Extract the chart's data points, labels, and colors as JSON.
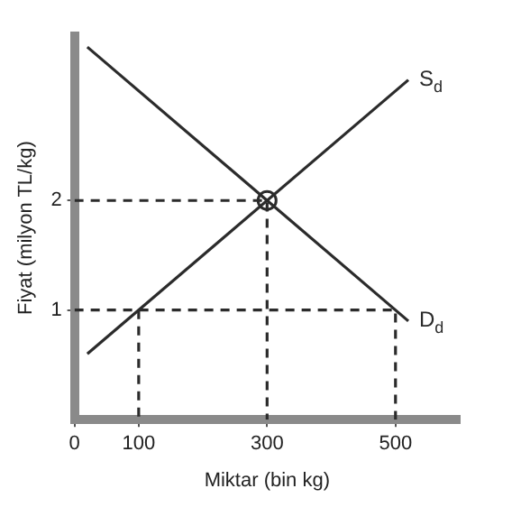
{
  "chart_data": {
    "type": "line",
    "xlabel": "Miktar (bin kg)",
    "ylabel": "Fiyat (milyon TL/kg)",
    "xlim": [
      0,
      600
    ],
    "ylim": [
      0,
      3.5
    ],
    "xticks": [
      0,
      100,
      300,
      500
    ],
    "yticks": [
      1,
      2
    ],
    "grid": false,
    "legend": false,
    "marker": "none",
    "series": [
      {
        "name": "S$_{d}$",
        "color": "#2b2b2b",
        "x": [
          20,
          520
        ],
        "values": [
          0.6,
          3.1
        ]
      },
      {
        "name": "D$_{d}$",
        "color": "#2b2b2b",
        "x": [
          20,
          520
        ],
        "values": [
          3.4,
          0.9
        ]
      },
      {
        "color": "#2b2b2b",
        "line_style": "dashed",
        "x": [
          0,
          300,
          300
        ],
        "values": [
          2,
          2,
          0
        ]
      },
      {
        "color": "#2b2b2b",
        "line_style": "dashed",
        "x": [
          0,
          500,
          500
        ],
        "values": [
          1,
          1,
          0
        ]
      },
      {
        "color": "#2b2b2b",
        "line_style": "dashed",
        "x": [
          100,
          100
        ],
        "values": [
          1,
          0
        ]
      },
      {
        "type": "scatter",
        "marker": "circle",
        "color": "#2b2b2b",
        "x": [
          300
        ],
        "values": [
          2
        ]
      }
    ]
  }
}
